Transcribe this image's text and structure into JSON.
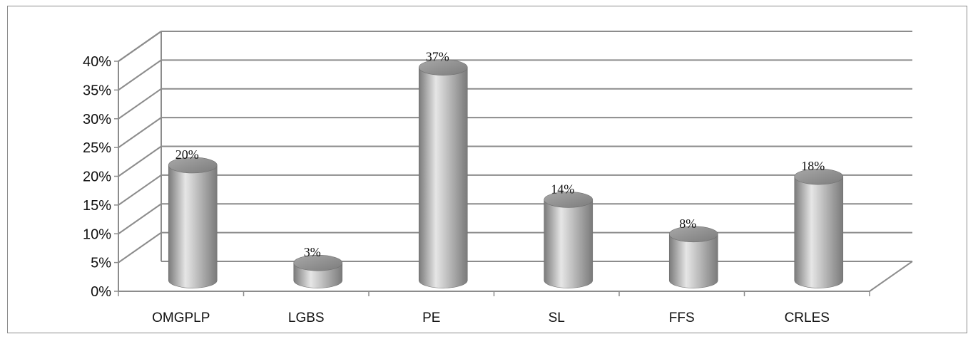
{
  "chart_data": {
    "type": "bar",
    "style": "3d-cylinder",
    "categories": [
      "OMGPLP",
      "LGBS",
      "PE",
      "SL",
      "FFS",
      "CRLES"
    ],
    "values": [
      20,
      3,
      37,
      14,
      8,
      18
    ],
    "data_labels": [
      "20%",
      "3%",
      "37%",
      "14%",
      "8%",
      "18%"
    ],
    "y_ticks": [
      "0%",
      "5%",
      "10%",
      "15%",
      "20%",
      "25%",
      "30%",
      "35%",
      "40%"
    ],
    "ylim": [
      0,
      40
    ],
    "grid": true,
    "legend": "none",
    "title": "",
    "xlabel": "",
    "ylabel": ""
  },
  "colors": {
    "bar": "#b4b4b4",
    "bar_dark": "#7a7a7a",
    "bar_light": "#e6e6e6",
    "grid": "#8c8c8c",
    "frame": "#8c8c8c",
    "text": "#111111"
  }
}
